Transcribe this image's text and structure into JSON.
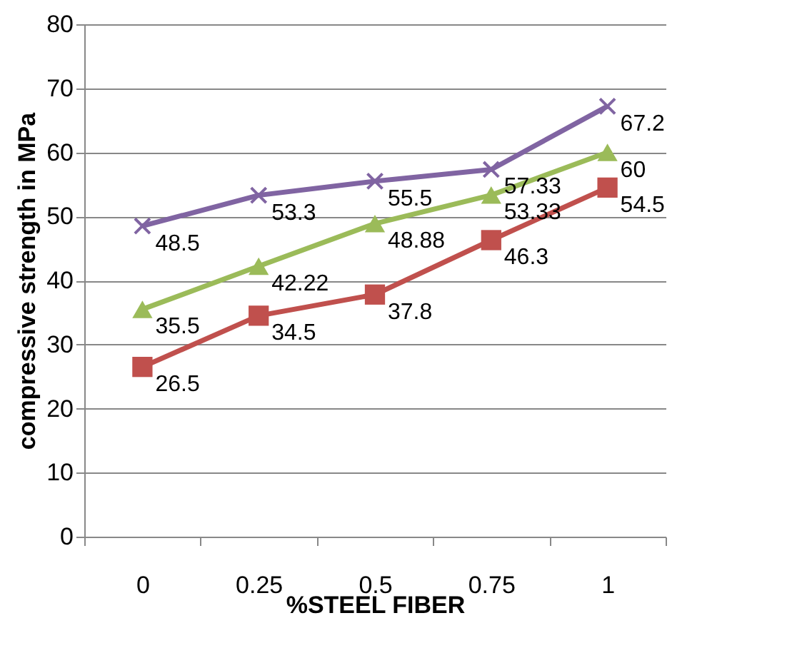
{
  "chart_data": {
    "type": "line",
    "xlabel": "%STEEL FIBER",
    "ylabel": "compressive strength in MPa",
    "categories": [
      "0",
      "0.25",
      "0.5",
      "0.75",
      "1"
    ],
    "series": [
      {
        "color": "#c0504d",
        "marker": "square",
        "values": [
          26.5,
          34.5,
          37.8,
          46.3,
          54.5
        ]
      },
      {
        "color": "#9bbb59",
        "marker": "triangle",
        "values": [
          35.5,
          42.22,
          48.88,
          53.33,
          60
        ]
      },
      {
        "color": "#8064a2",
        "marker": "cross",
        "values": [
          48.5,
          53.3,
          55.5,
          57.33,
          67.2
        ]
      }
    ],
    "ylim": [
      0,
      80
    ],
    "yticks": [
      0,
      10,
      20,
      30,
      40,
      50,
      60,
      70,
      80
    ],
    "grid": "y",
    "data_labels": true,
    "line_style": "solid"
  }
}
